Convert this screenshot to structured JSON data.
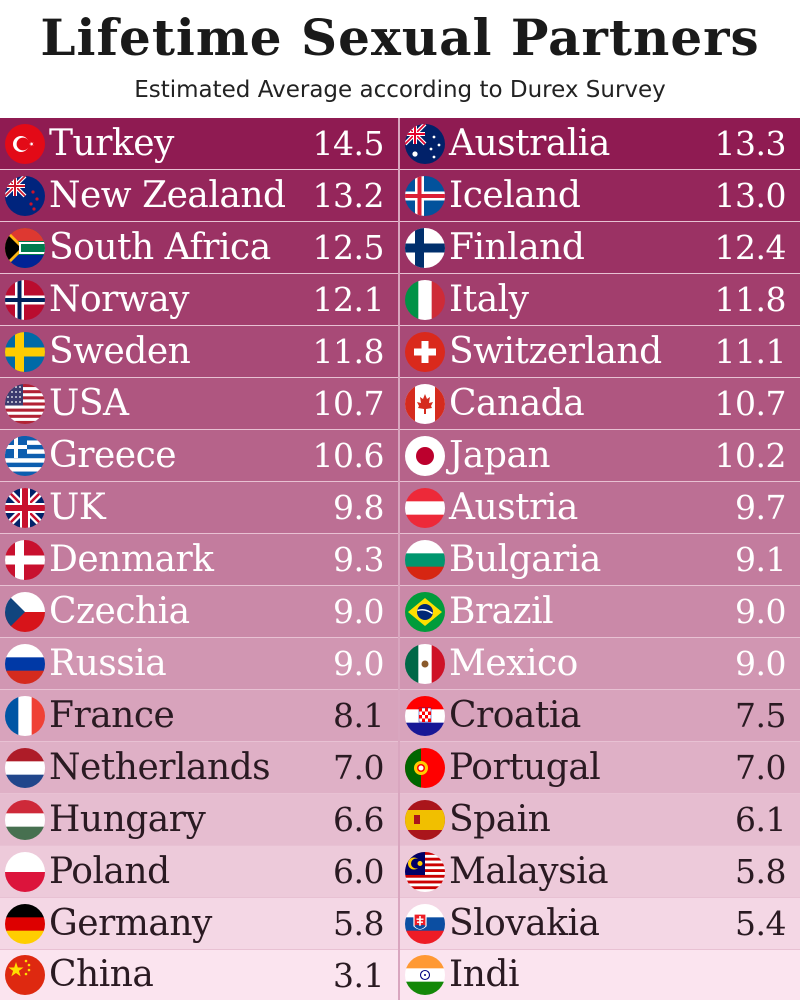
{
  "title": "Lifetime Sexual Partners",
  "subtitle": "Estimated Average according to Durex Survey",
  "chart_data": {
    "type": "table",
    "title": "Lifetime Sexual Partners",
    "subtitle": "Estimated Average according to Durex Survey",
    "left": [
      {
        "country": "Turkey",
        "value": "14.5",
        "flag": "turkey-flag-icon"
      },
      {
        "country": "New Zealand",
        "value": "13.2",
        "flag": "new-zealand-flag-icon"
      },
      {
        "country": "South Africa",
        "value": "12.5",
        "flag": "south-africa-flag-icon"
      },
      {
        "country": "Norway",
        "value": "12.1",
        "flag": "norway-flag-icon"
      },
      {
        "country": "Sweden",
        "value": "11.8",
        "flag": "sweden-flag-icon"
      },
      {
        "country": "USA",
        "value": "10.7",
        "flag": "usa-flag-icon"
      },
      {
        "country": "Greece",
        "value": "10.6",
        "flag": "greece-flag-icon"
      },
      {
        "country": "UK",
        "value": "9.8",
        "flag": "uk-flag-icon"
      },
      {
        "country": "Denmark",
        "value": "9.3",
        "flag": "denmark-flag-icon"
      },
      {
        "country": "Czechia",
        "value": "9.0",
        "flag": "czechia-flag-icon"
      },
      {
        "country": "Russia",
        "value": "9.0",
        "flag": "russia-flag-icon"
      },
      {
        "country": "France",
        "value": "8.1",
        "flag": "france-flag-icon"
      },
      {
        "country": "Netherlands",
        "value": "7.0",
        "flag": "netherlands-flag-icon"
      },
      {
        "country": "Hungary",
        "value": "6.6",
        "flag": "hungary-flag-icon"
      },
      {
        "country": "Poland",
        "value": "6.0",
        "flag": "poland-flag-icon"
      },
      {
        "country": "Germany",
        "value": "5.8",
        "flag": "germany-flag-icon"
      },
      {
        "country": "China",
        "value": "3.1",
        "flag": "china-flag-icon"
      }
    ],
    "right": [
      {
        "country": "Australia",
        "value": "13.3",
        "flag": "australia-flag-icon"
      },
      {
        "country": "Iceland",
        "value": "13.0",
        "flag": "iceland-flag-icon"
      },
      {
        "country": "Finland",
        "value": "12.4",
        "flag": "finland-flag-icon"
      },
      {
        "country": "Italy",
        "value": "11.8",
        "flag": "italy-flag-icon"
      },
      {
        "country": "Switzerland",
        "value": "11.1",
        "flag": "switzerland-flag-icon"
      },
      {
        "country": "Canada",
        "value": "10.7",
        "flag": "canada-flag-icon"
      },
      {
        "country": "Japan",
        "value": "10.2",
        "flag": "japan-flag-icon"
      },
      {
        "country": "Austria",
        "value": "9.7",
        "flag": "austria-flag-icon"
      },
      {
        "country": "Bulgaria",
        "value": "9.1",
        "flag": "bulgaria-flag-icon"
      },
      {
        "country": "Brazil",
        "value": "9.0",
        "flag": "brazil-flag-icon"
      },
      {
        "country": "Mexico",
        "value": "9.0",
        "flag": "mexico-flag-icon"
      },
      {
        "country": "Croatia",
        "value": "7.5",
        "flag": "croatia-flag-icon"
      },
      {
        "country": "Portugal",
        "value": "7.0",
        "flag": "portugal-flag-icon"
      },
      {
        "country": "Spain",
        "value": "6.1",
        "flag": "spain-flag-icon"
      },
      {
        "country": "Malaysia",
        "value": "5.8",
        "flag": "malaysia-flag-icon"
      },
      {
        "country": "Slovakia",
        "value": "5.4",
        "flag": "slovakia-flag-icon"
      },
      {
        "country": "Indi",
        "value": "",
        "flag": "india-flag-icon"
      }
    ],
    "row_colors": [
      "#8f1b52",
      "#fbe4ef"
    ]
  }
}
